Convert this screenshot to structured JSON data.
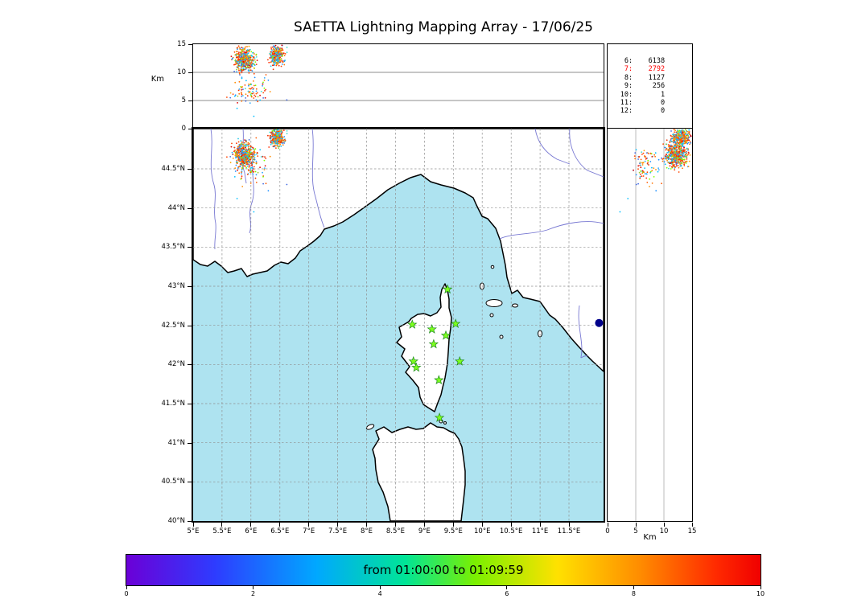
{
  "title": "SAETTA Lightning Mapping Array - 17/06/25",
  "axes": {
    "lon": {
      "labels": [
        "5°E",
        "5.5°E",
        "6°E",
        "6.5°E",
        "7°E",
        "7.5°E",
        "8°E",
        "8.5°E",
        "9°E",
        "9.5°E",
        "10°E",
        "10.5°E",
        "11°E",
        "11.5°E"
      ],
      "values": [
        5,
        5.5,
        6,
        6.5,
        7,
        7.5,
        8,
        8.5,
        9,
        9.5,
        10,
        10.5,
        11,
        11.5
      ]
    },
    "lat": {
      "labels": [
        "40°N",
        "40.5°N",
        "41°N",
        "41.5°N",
        "42°N",
        "42.5°N",
        "43°N",
        "43.5°N",
        "44°N",
        "44.5°N"
      ],
      "values": [
        40,
        40.5,
        41,
        41.5,
        42,
        42.5,
        43,
        43.5,
        44,
        44.5
      ]
    },
    "alt": {
      "labels": [
        "0",
        "5",
        "10",
        "15"
      ],
      "values": [
        0,
        5,
        10,
        15
      ],
      "unit": "Km",
      "grid_values": [
        5,
        10
      ]
    },
    "colorbar": {
      "labels": [
        "0",
        "2",
        "4",
        "6",
        "8",
        "10"
      ],
      "values": [
        0,
        2,
        4,
        6,
        8,
        10
      ]
    }
  },
  "stats": {
    "lines": [
      {
        "level": "6",
        "count": "6138",
        "color": "#000000"
      },
      {
        "level": "7",
        "count": "2792",
        "color": "#ff0000"
      },
      {
        "level": "8",
        "count": "1127",
        "color": "#000000"
      },
      {
        "level": "9",
        "count": "256",
        "color": "#000000"
      },
      {
        "level": "10",
        "count": "1",
        "color": "#000000"
      },
      {
        "level": "11",
        "count": "0",
        "color": "#000000"
      },
      {
        "level": "12",
        "count": "0",
        "color": "#000000"
      }
    ]
  },
  "colorbar": {
    "label": "from 01:00:00 to 01:09:59",
    "gradient_stops": [
      "#6b00d7 0%",
      "#2e3cff 14%",
      "#00a8ff 30%",
      "#00e596 44%",
      "#7bf000 55%",
      "#ffe100 68%",
      "#ff8c00 81%",
      "#ff2a00 93%",
      "#f00000 100%"
    ]
  },
  "chart_data": {
    "type": "scatter",
    "title": "SAETTA Lightning Mapping Array - 17/06/25",
    "panels": [
      "altitude-vs-longitude",
      "map-lon-lat",
      "altitude-vs-latitude"
    ],
    "map_extent": {
      "lon_min": 5.0,
      "lon_max": 12.1,
      "lat_min": 40.0,
      "lat_max": 45.01
    },
    "altitude_range_km": [
      0,
      15
    ],
    "time_window": {
      "from": "01:00:00",
      "to": "01:09:59",
      "date": "17/06/25"
    },
    "colorbar_minutes_range": [
      0,
      10
    ],
    "source_counts_by_level": [
      {
        "level": 6,
        "count": 6138
      },
      {
        "level": 7,
        "count": 2792
      },
      {
        "level": 8,
        "count": 1127
      },
      {
        "level": 9,
        "count": 256
      },
      {
        "level": 10,
        "count": 1
      },
      {
        "level": 11,
        "count": 0
      },
      {
        "level": 12,
        "count": 0
      }
    ],
    "stations_lonlat": [
      [
        9.4,
        42.96
      ],
      [
        8.79,
        42.51
      ],
      [
        9.13,
        42.45
      ],
      [
        9.54,
        42.52
      ],
      [
        9.37,
        42.37
      ],
      [
        9.16,
        42.26
      ],
      [
        8.81,
        42.04
      ],
      [
        9.61,
        42.04
      ],
      [
        8.86,
        41.96
      ],
      [
        9.25,
        41.8
      ],
      [
        9.26,
        41.32
      ]
    ],
    "large_marker": {
      "lon": 12.02,
      "lat": 42.53,
      "color": "#00008b",
      "radius_px": 5
    },
    "lightning_clusters": [
      {
        "name": "storm-cell-west",
        "lon": 5.88,
        "lon_spread": 0.17,
        "lat": 44.68,
        "lat_spread": 0.16,
        "alt_km": 12.2,
        "alt_spread": 2.0,
        "count": 460
      },
      {
        "name": "storm-cell-east",
        "lon": 6.45,
        "lon_spread": 0.13,
        "lat": 44.9,
        "lat_spread": 0.11,
        "alt_km": 13.0,
        "alt_spread": 1.6,
        "count": 300
      },
      {
        "name": "low-alt-scatter",
        "lon": 5.98,
        "lon_spread": 0.3,
        "lat": 44.55,
        "lat_spread": 0.24,
        "alt_km": 6.8,
        "alt_spread": 2.3,
        "count": 90
      }
    ],
    "stray_points": [
      {
        "lon": 6.3,
        "lat": 44.22,
        "alt": 8.6,
        "color": "#1e90ff"
      },
      {
        "lon": 5.76,
        "lat": 44.12,
        "alt": 3.6,
        "color": "#00bfff"
      },
      {
        "lon": 6.62,
        "lat": 44.3,
        "alt": 5.1,
        "color": "#4169e1"
      },
      {
        "lon": 6.05,
        "lat": 43.95,
        "alt": 2.2,
        "color": "#00bfff"
      }
    ],
    "point_colors": [
      "#ff4500",
      "#ff4500",
      "#ff5a00",
      "#ff7300",
      "#ff8c00",
      "#ffa500",
      "#f03000",
      "#e00000",
      "#ff2d00",
      "#00bfff",
      "#1e90ff",
      "#29c8e8",
      "#40e0d0",
      "#7fff00",
      "#9acd32",
      "#4169e1",
      "#2aa8ff"
    ]
  }
}
